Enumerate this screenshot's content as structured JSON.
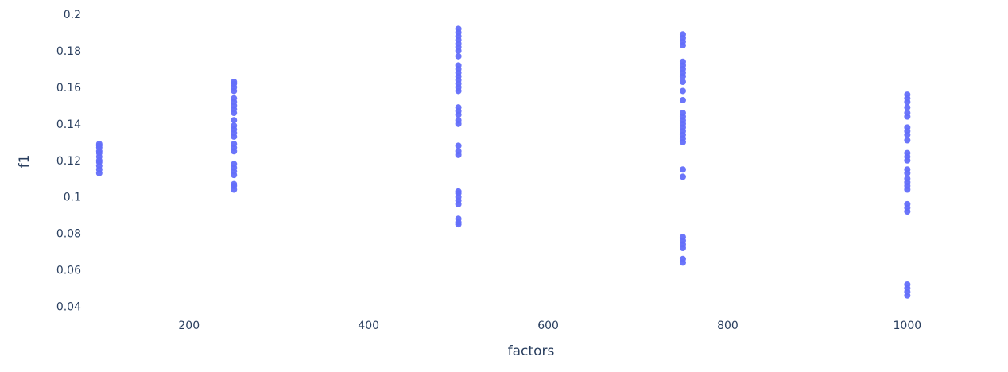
{
  "chart_data": {
    "type": "scatter",
    "xlabel": "factors",
    "ylabel": "f1",
    "xlim": [
      55,
      1090
    ],
    "ylim": [
      0.035,
      0.2
    ],
    "x_ticks": [
      200,
      400,
      600,
      800,
      1000
    ],
    "x_tick_labels": [
      "200",
      "400",
      "600",
      "800",
      "1000"
    ],
    "y_ticks": [
      0.04,
      0.06,
      0.08,
      0.1,
      0.12,
      0.14,
      0.16,
      0.18,
      0.2
    ],
    "y_tick_labels": [
      "0.04",
      "0.06",
      "0.08",
      "0.1",
      "0.12",
      "0.14",
      "0.16",
      "0.18",
      "0.2"
    ],
    "grid": false,
    "marker_color": "#636efa",
    "points": [
      {
        "x": 100,
        "y": 0.113
      },
      {
        "x": 100,
        "y": 0.115
      },
      {
        "x": 100,
        "y": 0.117
      },
      {
        "x": 100,
        "y": 0.119
      },
      {
        "x": 100,
        "y": 0.12
      },
      {
        "x": 100,
        "y": 0.122
      },
      {
        "x": 100,
        "y": 0.124
      },
      {
        "x": 100,
        "y": 0.125
      },
      {
        "x": 100,
        "y": 0.127
      },
      {
        "x": 100,
        "y": 0.128
      },
      {
        "x": 100,
        "y": 0.129
      },
      {
        "x": 250,
        "y": 0.104
      },
      {
        "x": 250,
        "y": 0.106
      },
      {
        "x": 250,
        "y": 0.107
      },
      {
        "x": 250,
        "y": 0.112
      },
      {
        "x": 250,
        "y": 0.114
      },
      {
        "x": 250,
        "y": 0.116
      },
      {
        "x": 250,
        "y": 0.118
      },
      {
        "x": 250,
        "y": 0.125
      },
      {
        "x": 250,
        "y": 0.127
      },
      {
        "x": 250,
        "y": 0.129
      },
      {
        "x": 250,
        "y": 0.133
      },
      {
        "x": 250,
        "y": 0.135
      },
      {
        "x": 250,
        "y": 0.137
      },
      {
        "x": 250,
        "y": 0.139
      },
      {
        "x": 250,
        "y": 0.142
      },
      {
        "x": 250,
        "y": 0.146
      },
      {
        "x": 250,
        "y": 0.148
      },
      {
        "x": 250,
        "y": 0.15
      },
      {
        "x": 250,
        "y": 0.152
      },
      {
        "x": 250,
        "y": 0.154
      },
      {
        "x": 250,
        "y": 0.158
      },
      {
        "x": 250,
        "y": 0.16
      },
      {
        "x": 250,
        "y": 0.162
      },
      {
        "x": 250,
        "y": 0.163
      },
      {
        "x": 500,
        "y": 0.085
      },
      {
        "x": 500,
        "y": 0.086
      },
      {
        "x": 500,
        "y": 0.088
      },
      {
        "x": 500,
        "y": 0.096
      },
      {
        "x": 500,
        "y": 0.098
      },
      {
        "x": 500,
        "y": 0.1
      },
      {
        "x": 500,
        "y": 0.102
      },
      {
        "x": 500,
        "y": 0.103
      },
      {
        "x": 500,
        "y": 0.123
      },
      {
        "x": 500,
        "y": 0.125
      },
      {
        "x": 500,
        "y": 0.128
      },
      {
        "x": 500,
        "y": 0.14
      },
      {
        "x": 500,
        "y": 0.142
      },
      {
        "x": 500,
        "y": 0.145
      },
      {
        "x": 500,
        "y": 0.147
      },
      {
        "x": 500,
        "y": 0.149
      },
      {
        "x": 500,
        "y": 0.158
      },
      {
        "x": 500,
        "y": 0.16
      },
      {
        "x": 500,
        "y": 0.162
      },
      {
        "x": 500,
        "y": 0.164
      },
      {
        "x": 500,
        "y": 0.166
      },
      {
        "x": 500,
        "y": 0.168
      },
      {
        "x": 500,
        "y": 0.17
      },
      {
        "x": 500,
        "y": 0.172
      },
      {
        "x": 500,
        "y": 0.177
      },
      {
        "x": 500,
        "y": 0.18
      },
      {
        "x": 500,
        "y": 0.182
      },
      {
        "x": 500,
        "y": 0.184
      },
      {
        "x": 500,
        "y": 0.186
      },
      {
        "x": 500,
        "y": 0.188
      },
      {
        "x": 500,
        "y": 0.19
      },
      {
        "x": 500,
        "y": 0.192
      },
      {
        "x": 750,
        "y": 0.064
      },
      {
        "x": 750,
        "y": 0.066
      },
      {
        "x": 750,
        "y": 0.072
      },
      {
        "x": 750,
        "y": 0.074
      },
      {
        "x": 750,
        "y": 0.076
      },
      {
        "x": 750,
        "y": 0.078
      },
      {
        "x": 750,
        "y": 0.111
      },
      {
        "x": 750,
        "y": 0.115
      },
      {
        "x": 750,
        "y": 0.13
      },
      {
        "x": 750,
        "y": 0.132
      },
      {
        "x": 750,
        "y": 0.134
      },
      {
        "x": 750,
        "y": 0.136
      },
      {
        "x": 750,
        "y": 0.138
      },
      {
        "x": 750,
        "y": 0.14
      },
      {
        "x": 750,
        "y": 0.142
      },
      {
        "x": 750,
        "y": 0.144
      },
      {
        "x": 750,
        "y": 0.146
      },
      {
        "x": 750,
        "y": 0.153
      },
      {
        "x": 750,
        "y": 0.158
      },
      {
        "x": 750,
        "y": 0.163
      },
      {
        "x": 750,
        "y": 0.166
      },
      {
        "x": 750,
        "y": 0.168
      },
      {
        "x": 750,
        "y": 0.17
      },
      {
        "x": 750,
        "y": 0.172
      },
      {
        "x": 750,
        "y": 0.174
      },
      {
        "x": 750,
        "y": 0.183
      },
      {
        "x": 750,
        "y": 0.185
      },
      {
        "x": 750,
        "y": 0.187
      },
      {
        "x": 750,
        "y": 0.189
      },
      {
        "x": 1000,
        "y": 0.046
      },
      {
        "x": 1000,
        "y": 0.048
      },
      {
        "x": 1000,
        "y": 0.05
      },
      {
        "x": 1000,
        "y": 0.052
      },
      {
        "x": 1000,
        "y": 0.092
      },
      {
        "x": 1000,
        "y": 0.094
      },
      {
        "x": 1000,
        "y": 0.096
      },
      {
        "x": 1000,
        "y": 0.104
      },
      {
        "x": 1000,
        "y": 0.106
      },
      {
        "x": 1000,
        "y": 0.108
      },
      {
        "x": 1000,
        "y": 0.11
      },
      {
        "x": 1000,
        "y": 0.113
      },
      {
        "x": 1000,
        "y": 0.115
      },
      {
        "x": 1000,
        "y": 0.12
      },
      {
        "x": 1000,
        "y": 0.122
      },
      {
        "x": 1000,
        "y": 0.124
      },
      {
        "x": 1000,
        "y": 0.131
      },
      {
        "x": 1000,
        "y": 0.134
      },
      {
        "x": 1000,
        "y": 0.136
      },
      {
        "x": 1000,
        "y": 0.138
      },
      {
        "x": 1000,
        "y": 0.144
      },
      {
        "x": 1000,
        "y": 0.146
      },
      {
        "x": 1000,
        "y": 0.149
      },
      {
        "x": 1000,
        "y": 0.152
      },
      {
        "x": 1000,
        "y": 0.154
      },
      {
        "x": 1000,
        "y": 0.156
      }
    ]
  }
}
